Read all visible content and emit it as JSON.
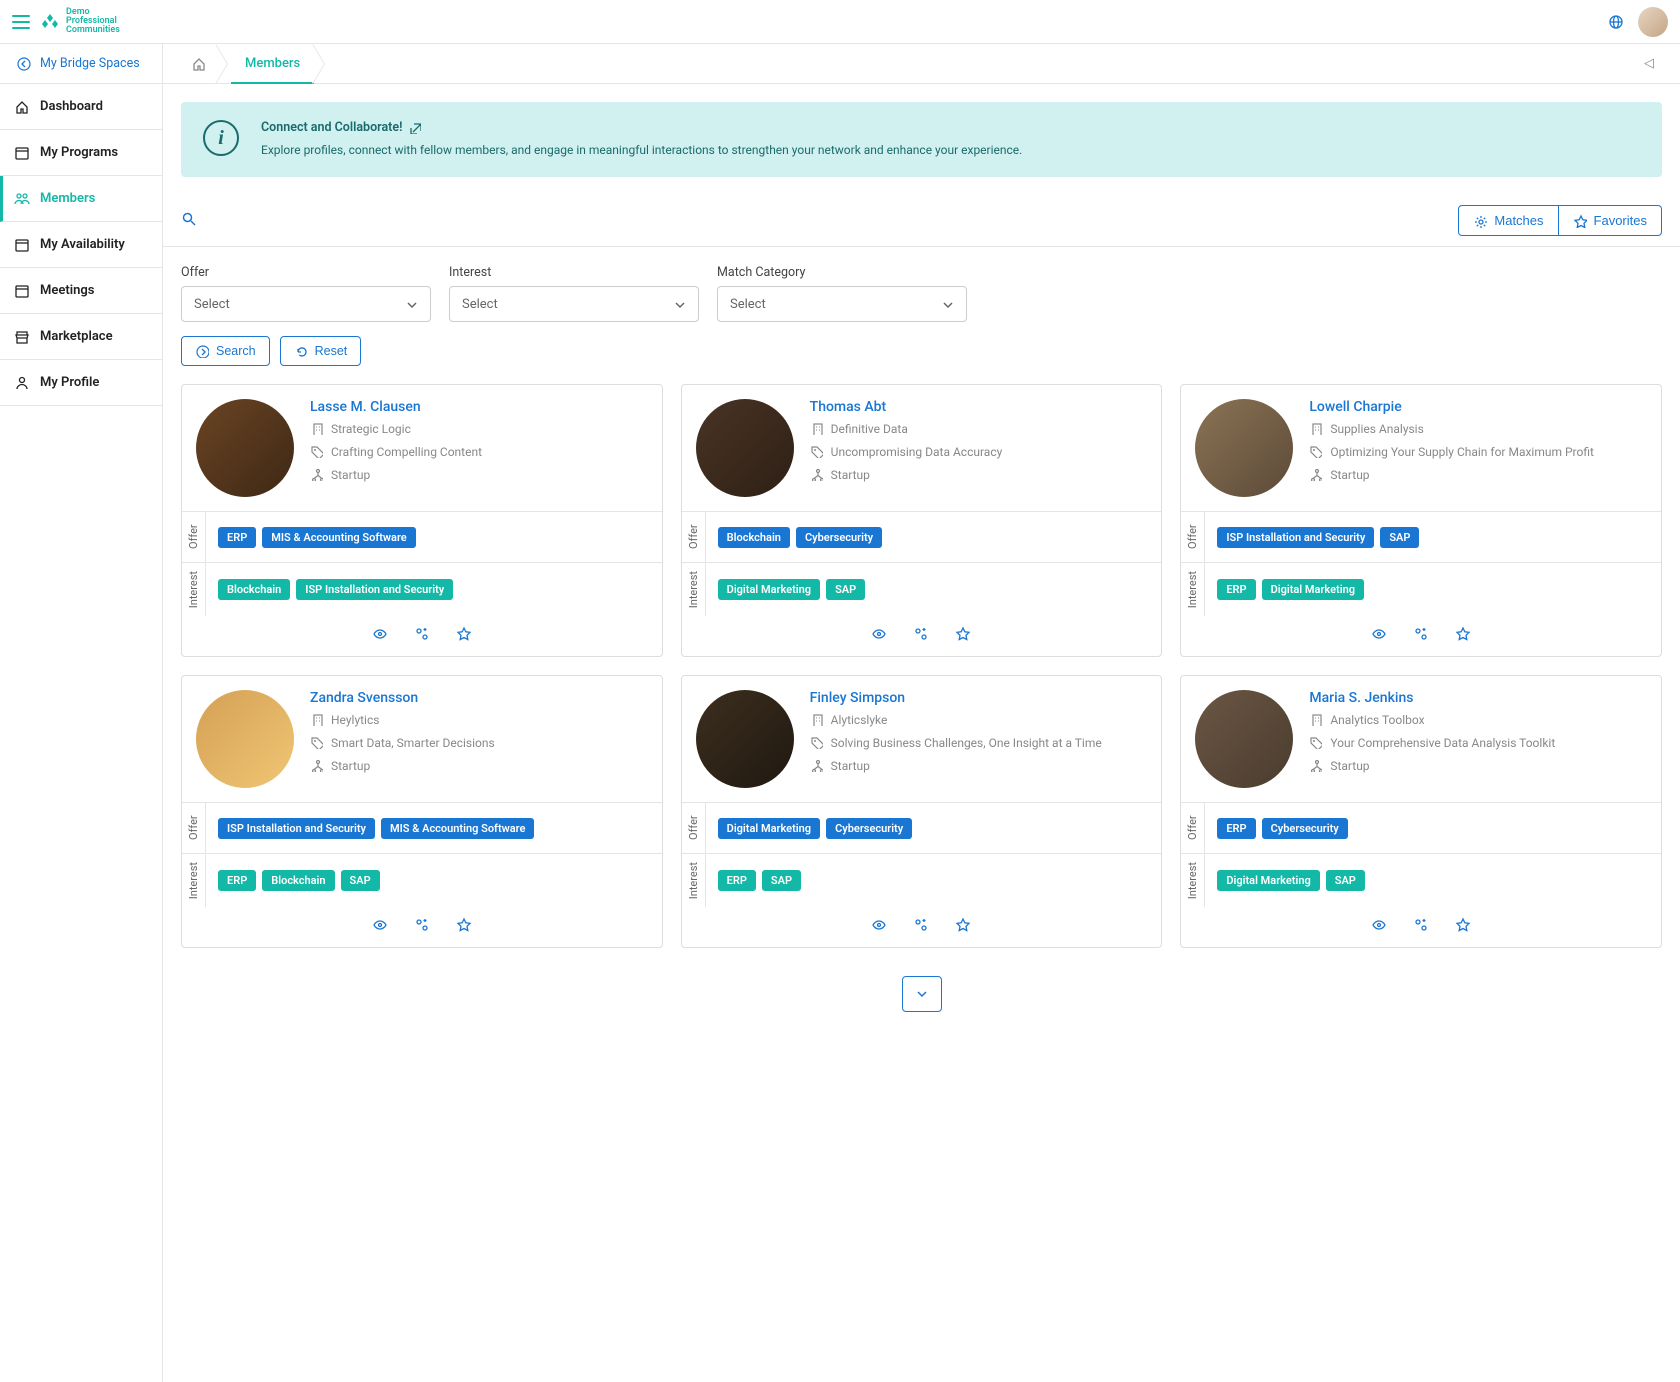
{
  "brand": {
    "line1": "Demo",
    "line2": "Professional",
    "line3": "Communities"
  },
  "sidebar": {
    "header": "My Bridge Spaces",
    "items": [
      {
        "label": "Dashboard",
        "icon": "home"
      },
      {
        "label": "My Programs",
        "icon": "calendar"
      },
      {
        "label": "Members",
        "icon": "people",
        "active": true
      },
      {
        "label": "My Availability",
        "icon": "calendar"
      },
      {
        "label": "Meetings",
        "icon": "calendar"
      },
      {
        "label": "Marketplace",
        "icon": "store"
      },
      {
        "label": "My Profile",
        "icon": "person"
      }
    ]
  },
  "breadcrumb": {
    "tab": "Members"
  },
  "banner": {
    "title": "Connect and Collaborate!",
    "desc": "Explore profiles, connect with fellow members, and engage in meaningful interactions to strengthen your network and enhance your experience."
  },
  "toolbar": {
    "matches": "Matches",
    "favorites": "Favorites"
  },
  "filters": {
    "offer_label": "Offer",
    "interest_label": "Interest",
    "category_label": "Match Category",
    "select_placeholder": "Select",
    "search": "Search",
    "reset": "Reset"
  },
  "tag_labels": {
    "offer": "Offer",
    "interest": "Interest"
  },
  "members": [
    {
      "name": "Lasse M. Clausen",
      "company": "Strategic Logic",
      "tagline": "Crafting Compelling Content",
      "stage": "Startup",
      "offers": [
        "ERP",
        "MIS & Accounting Software"
      ],
      "interests": [
        "Blockchain",
        "ISP Installation and Security"
      ],
      "avatar_class": "av1"
    },
    {
      "name": "Thomas Abt",
      "company": "Definitive Data",
      "tagline": "Uncompromising Data Accuracy",
      "stage": "Startup",
      "offers": [
        "Blockchain",
        "Cybersecurity"
      ],
      "interests": [
        "Digital Marketing",
        "SAP"
      ],
      "avatar_class": "av2"
    },
    {
      "name": "Lowell Charpie",
      "company": "Supplies Analysis",
      "tagline": "Optimizing Your Supply Chain for Maximum Profit",
      "stage": "Startup",
      "offers": [
        "ISP Installation and Security",
        "SAP"
      ],
      "interests": [
        "ERP",
        "Digital Marketing"
      ],
      "avatar_class": "av3"
    },
    {
      "name": "Zandra Svensson",
      "company": "Heylytics",
      "tagline": "Smart Data, Smarter Decisions",
      "stage": "Startup",
      "offers": [
        "ISP Installation and Security",
        "MIS & Accounting Software"
      ],
      "interests": [
        "ERP",
        "Blockchain",
        "SAP"
      ],
      "avatar_class": "av4"
    },
    {
      "name": "Finley Simpson",
      "company": "Alyticslyke",
      "tagline": "Solving Business Challenges, One Insight at a Time",
      "stage": "Startup",
      "offers": [
        "Digital Marketing",
        "Cybersecurity"
      ],
      "interests": [
        "ERP",
        "SAP"
      ],
      "avatar_class": "av5"
    },
    {
      "name": "Maria S. Jenkins",
      "company": "Analytics Toolbox",
      "tagline": "Your Comprehensive Data Analysis Toolkit",
      "stage": "Startup",
      "offers": [
        "ERP",
        "Cybersecurity"
      ],
      "interests": [
        "Digital Marketing",
        "SAP"
      ],
      "avatar_class": "av6"
    }
  ]
}
